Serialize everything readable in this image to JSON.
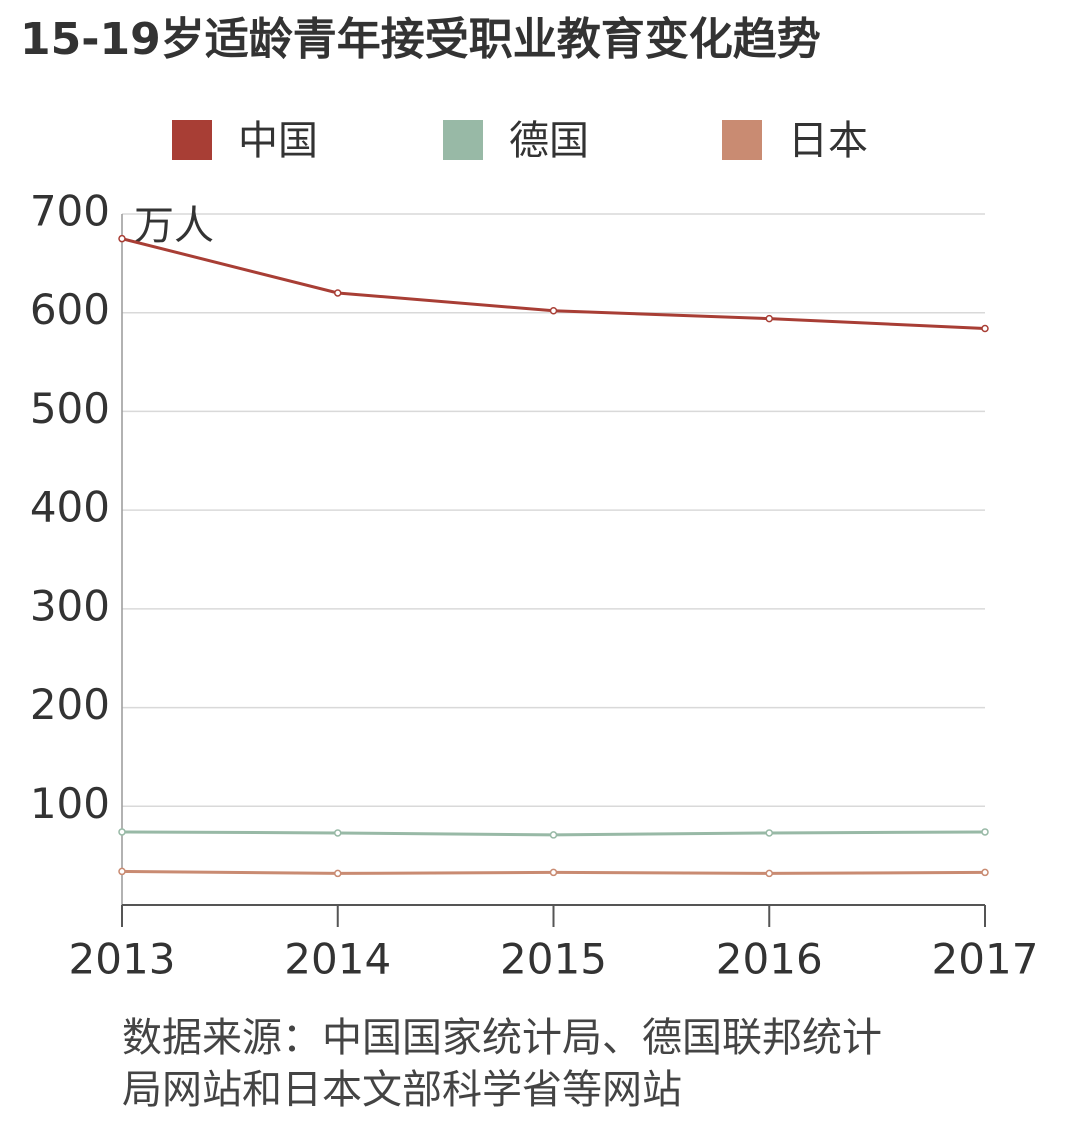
{
  "chart_data": {
    "type": "line",
    "title": "15-19岁适龄青年接受职业教育变化趋势",
    "ylabel": "万人",
    "categories": [
      "2013",
      "2014",
      "2015",
      "2016",
      "2017"
    ],
    "series": [
      {
        "name": "中国",
        "color": "#a83e35",
        "values": [
          675,
          620,
          602,
          594,
          584
        ]
      },
      {
        "name": "德国",
        "color": "#98b9a6",
        "values": [
          74,
          73,
          71,
          73,
          74
        ]
      },
      {
        "name": "日本",
        "color": "#c98b72",
        "values": [
          34,
          32,
          33,
          32,
          33
        ]
      }
    ],
    "ylim": [
      0,
      700
    ],
    "yticks": [
      100,
      200,
      300,
      400,
      500,
      600,
      700
    ],
    "grid": true,
    "legend": "top",
    "source": "数据来源：中国国家统计局、德国联邦统计局网站和日本文部科学省等网站"
  }
}
